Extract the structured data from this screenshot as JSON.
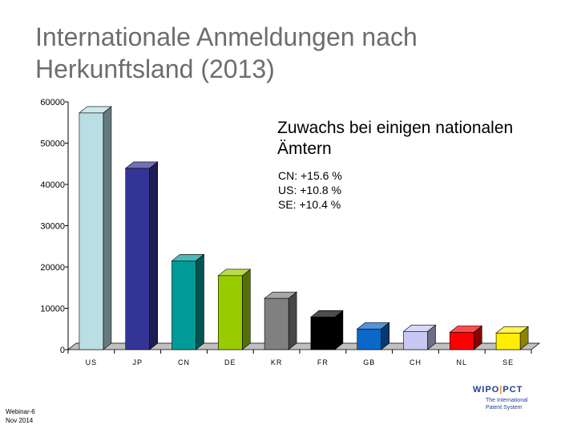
{
  "title_lines": [
    "Internationale Anmeldungen nach",
    "Herkunftsland (2013)"
  ],
  "annotation": {
    "heading_lines": [
      "Zuwachs bei einigen nationalen",
      "Ämtern"
    ],
    "growth_lines": [
      "CN: +15.6 %",
      "US: +10.8 %",
      "SE: +10.4 %"
    ]
  },
  "footer": {
    "left_lines": [
      "Webinar-6",
      "Nov 2014"
    ]
  },
  "logo": {
    "text_left": "WIPO",
    "separator": "|",
    "text_right": "PCT",
    "tagline_lines": [
      "The International",
      "Patent System"
    ]
  },
  "chart_data": {
    "type": "bar",
    "title": "Internationale Anmeldungen nach Herkunftsland (2013)",
    "xlabel": "",
    "ylabel": "",
    "ylim": [
      0,
      60000
    ],
    "yticks": [
      "0",
      "10000",
      "20000",
      "30000",
      "40000",
      "50000",
      "60000"
    ],
    "categories": [
      "US",
      "JP",
      "CN",
      "DE",
      "KR",
      "FR",
      "GB",
      "CH",
      "NL",
      "SE"
    ],
    "values": [
      57300,
      43900,
      21500,
      17900,
      12400,
      7900,
      5000,
      4400,
      4200,
      4000
    ],
    "colors": [
      "#b9dfe4",
      "#343497",
      "#009b96",
      "#99cc00",
      "#808080",
      "#000000",
      "#0b67c8",
      "#c7c8f3",
      "#ff0000",
      "#ffee00"
    ]
  }
}
